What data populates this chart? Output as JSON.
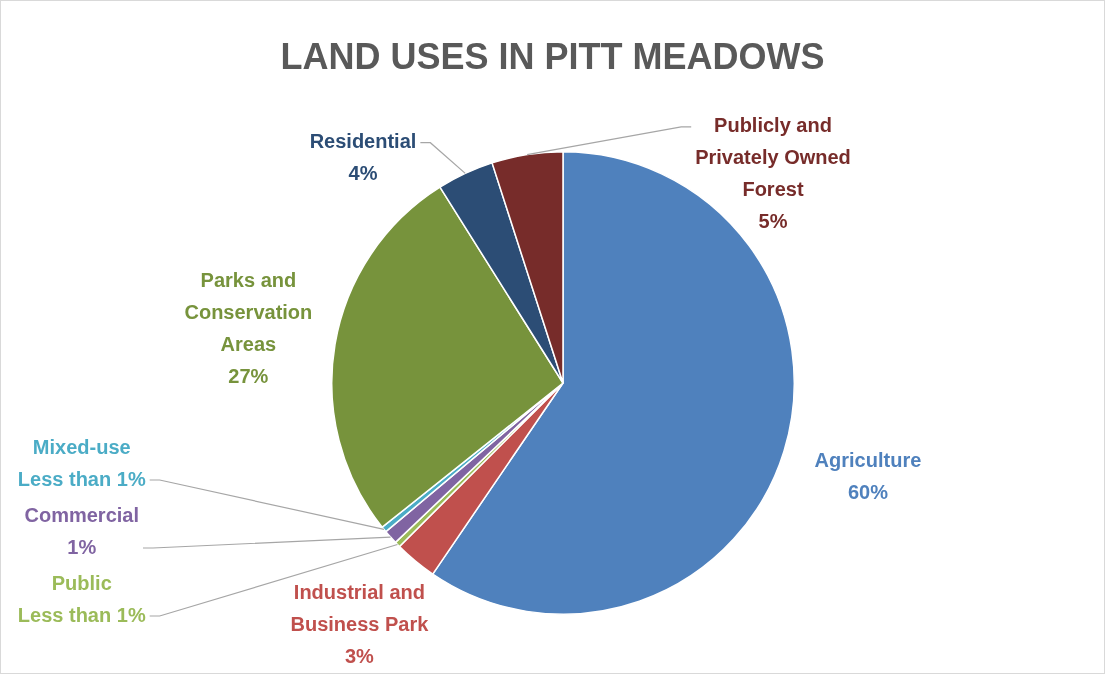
{
  "chart_data": {
    "type": "pie",
    "title": "LAND USES IN PITT MEADOWS",
    "categories": [
      "Agriculture",
      "Industrial and Business Park",
      "Public",
      "Commercial",
      "Mixed-use",
      "Parks and Conservation Areas",
      "Residential",
      "Publicly and Privately Owned Forest"
    ],
    "values": [
      60,
      3,
      0.4,
      1,
      0.4,
      27,
      4,
      5
    ],
    "value_labels": [
      "60%",
      "3%",
      "Less than 1%",
      "1%",
      "Less than 1%",
      "27%",
      "4%",
      "5%"
    ],
    "colors": [
      "#4f81bd",
      "#c0504d",
      "#9bbb59",
      "#8064a2",
      "#4bacc6",
      "#77933c",
      "#2c4d75",
      "#772c2a"
    ],
    "legend": false
  }
}
